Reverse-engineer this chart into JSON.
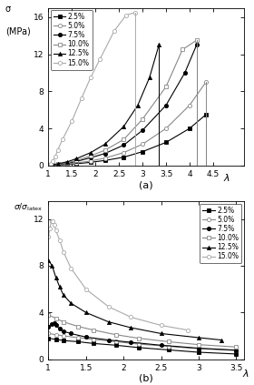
{
  "top": {
    "ylabel1": "σ",
    "ylabel2": "(MPa)",
    "xlabel_label": "λ",
    "ylim": [
      0,
      17
    ],
    "yticks": [
      0,
      4,
      8,
      12,
      16
    ],
    "xlim": [
      1.0,
      5.15
    ],
    "xticks": [
      1.0,
      1.5,
      2.0,
      2.5,
      3.0,
      3.5,
      4.0,
      4.5
    ],
    "xticklabels": [
      "1",
      "1.5",
      "2",
      "2.5",
      "3",
      "3.5",
      "4",
      "4.5"
    ],
    "series": [
      {
        "label": "2.5%",
        "color": "#000000",
        "marker": "s",
        "filled": true,
        "lw": 0.8,
        "x": [
          1.0,
          1.1,
          1.2,
          1.4,
          1.6,
          1.9,
          2.2,
          2.6,
          3.0,
          3.5,
          4.0,
          4.35,
          4.35
        ],
        "y": [
          0.0,
          0.02,
          0.06,
          0.12,
          0.2,
          0.35,
          0.55,
          0.9,
          1.5,
          2.5,
          4.0,
          5.5,
          0.0
        ]
      },
      {
        "label": "5.0%",
        "color": "#888888",
        "marker": "o",
        "filled": false,
        "lw": 0.8,
        "x": [
          1.0,
          1.1,
          1.2,
          1.4,
          1.6,
          1.9,
          2.2,
          2.6,
          3.0,
          3.5,
          4.0,
          4.35,
          4.35
        ],
        "y": [
          0.0,
          0.03,
          0.08,
          0.15,
          0.28,
          0.5,
          0.8,
          1.4,
          2.3,
          4.0,
          6.5,
          9.0,
          0.0
        ]
      },
      {
        "label": "7.5%",
        "color": "#000000",
        "marker": "o",
        "filled": true,
        "lw": 0.8,
        "x": [
          1.0,
          1.1,
          1.2,
          1.4,
          1.6,
          1.9,
          2.2,
          2.6,
          3.0,
          3.5,
          3.9,
          4.15,
          4.15
        ],
        "y": [
          0.0,
          0.05,
          0.12,
          0.25,
          0.45,
          0.85,
          1.3,
          2.2,
          3.8,
          6.5,
          10.0,
          13.0,
          0.0
        ]
      },
      {
        "label": "10.0%",
        "color": "#888888",
        "marker": "s",
        "filled": false,
        "lw": 0.8,
        "x": [
          1.0,
          1.1,
          1.2,
          1.4,
          1.6,
          1.9,
          2.2,
          2.6,
          3.0,
          3.5,
          3.85,
          4.15,
          4.15
        ],
        "y": [
          0.0,
          0.06,
          0.15,
          0.3,
          0.55,
          1.05,
          1.65,
          2.8,
          5.0,
          8.5,
          12.5,
          13.5,
          0.0
        ]
      },
      {
        "label": "12.5%",
        "color": "#000000",
        "marker": "^",
        "filled": true,
        "lw": 0.8,
        "x": [
          1.0,
          1.1,
          1.2,
          1.4,
          1.6,
          1.9,
          2.2,
          2.6,
          2.9,
          3.15,
          3.35,
          3.35
        ],
        "y": [
          0.0,
          0.08,
          0.2,
          0.4,
          0.75,
          1.4,
          2.3,
          4.2,
          6.5,
          9.5,
          13.0,
          0.0
        ]
      },
      {
        "label": "15.0%",
        "color": "#aaaaaa",
        "marker": "o",
        "filled": false,
        "lw": 0.8,
        "x": [
          1.0,
          1.05,
          1.1,
          1.15,
          1.2,
          1.3,
          1.5,
          1.7,
          1.9,
          2.1,
          2.4,
          2.65,
          2.85,
          2.85
        ],
        "y": [
          0.0,
          0.2,
          0.5,
          1.0,
          1.7,
          2.8,
          4.8,
          7.2,
          9.5,
          11.5,
          14.5,
          16.2,
          16.5,
          0.0
        ]
      }
    ],
    "subplot_label": "(a)"
  },
  "bottom": {
    "xlabel_label": "λ",
    "ylim": [
      0,
      13.5
    ],
    "yticks": [
      0,
      4,
      8,
      12
    ],
    "xlim": [
      1.0,
      3.6
    ],
    "xticks": [
      1.0,
      1.5,
      2.0,
      2.5,
      3.0,
      3.5
    ],
    "xticklabels": [
      "1",
      "1.5",
      "2",
      "2.5",
      "3",
      "3.5"
    ],
    "series": [
      {
        "label": "2.5%",
        "color": "#000000",
        "marker": "s",
        "filled": true,
        "lw": 0.8,
        "x": [
          1.0,
          1.1,
          1.2,
          1.4,
          1.6,
          1.9,
          2.2,
          2.6,
          3.0,
          3.5
        ],
        "y": [
          1.8,
          1.7,
          1.6,
          1.5,
          1.35,
          1.2,
          1.0,
          0.8,
          0.6,
          0.45
        ]
      },
      {
        "label": "5.0%",
        "color": "#888888",
        "marker": "o",
        "filled": false,
        "lw": 0.8,
        "x": [
          1.0,
          1.1,
          1.2,
          1.4,
          1.6,
          1.9,
          2.2,
          2.6,
          3.0,
          3.5
        ],
        "y": [
          2.2,
          2.1,
          2.0,
          1.85,
          1.7,
          1.5,
          1.3,
          1.1,
          0.9,
          0.75
        ]
      },
      {
        "label": "7.5%",
        "color": "#000000",
        "marker": "o",
        "filled": true,
        "lw": 0.8,
        "x": [
          1.0,
          1.05,
          1.08,
          1.1,
          1.15,
          1.2,
          1.3,
          1.5,
          1.8,
          2.1,
          2.5,
          3.0,
          3.5
        ],
        "y": [
          2.8,
          3.0,
          3.1,
          2.9,
          2.6,
          2.4,
          2.2,
          1.9,
          1.65,
          1.45,
          1.2,
          0.95,
          0.78
        ]
      },
      {
        "label": "10.0%",
        "color": "#888888",
        "marker": "s",
        "filled": false,
        "lw": 0.8,
        "x": [
          1.0,
          1.1,
          1.2,
          1.4,
          1.6,
          1.9,
          2.2,
          2.6,
          3.0,
          3.5
        ],
        "y": [
          3.8,
          3.5,
          3.2,
          2.8,
          2.5,
          2.1,
          1.8,
          1.5,
          1.25,
          1.05
        ]
      },
      {
        "label": "12.5%",
        "color": "#000000",
        "marker": "^",
        "filled": true,
        "lw": 0.8,
        "x": [
          1.0,
          1.05,
          1.1,
          1.15,
          1.2,
          1.3,
          1.5,
          1.8,
          2.1,
          2.5,
          3.0,
          3.3
        ],
        "y": [
          8.5,
          8.0,
          7.0,
          6.2,
          5.5,
          4.8,
          4.0,
          3.2,
          2.7,
          2.2,
          1.85,
          1.65
        ]
      },
      {
        "label": "15.0%",
        "color": "#aaaaaa",
        "marker": "o",
        "filled": false,
        "lw": 0.8,
        "x": [
          1.0,
          1.02,
          1.04,
          1.06,
          1.08,
          1.1,
          1.15,
          1.2,
          1.3,
          1.5,
          1.8,
          2.1,
          2.5,
          2.85
        ],
        "y": [
          10.5,
          11.2,
          11.8,
          11.8,
          11.5,
          11.0,
          10.2,
          9.2,
          7.8,
          6.0,
          4.5,
          3.6,
          2.9,
          2.5
        ]
      }
    ],
    "subplot_label": "(b)"
  }
}
